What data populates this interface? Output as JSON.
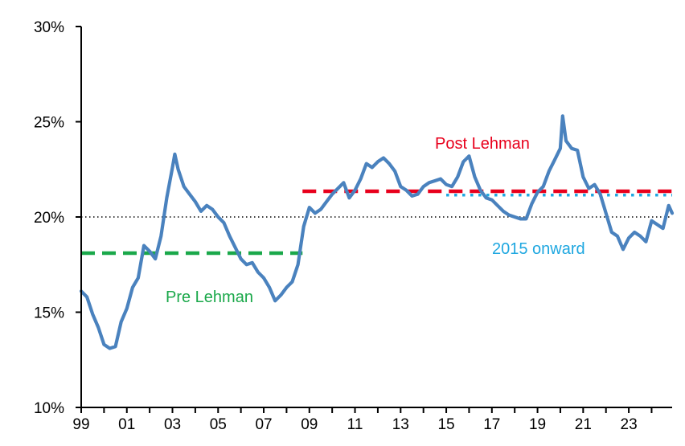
{
  "chart_data": {
    "type": "line",
    "title": "",
    "xlabel": "",
    "ylabel": "",
    "ylim": [
      10,
      30
    ],
    "xlim": [
      1999,
      2024.9
    ],
    "grid": false,
    "x_tick_values": [
      1999,
      2001,
      2003,
      2005,
      2007,
      2009,
      2011,
      2013,
      2015,
      2017,
      2019,
      2021,
      2023
    ],
    "x_tick_labels": [
      "99",
      "01",
      "03",
      "05",
      "07",
      "09",
      "11",
      "13",
      "15",
      "17",
      "19",
      "21",
      "23"
    ],
    "y_tick_values": [
      10,
      15,
      20,
      25,
      30
    ],
    "y_tick_labels": [
      "10%",
      "15%",
      "20%",
      "25%",
      "30%"
    ],
    "series": [
      {
        "color": "#4a82be",
        "x": [
          1999.0,
          1999.25,
          1999.5,
          1999.75,
          2000.0,
          2000.25,
          2000.5,
          2000.75,
          2001.0,
          2001.25,
          2001.5,
          2001.75,
          2002.0,
          2002.25,
          2002.5,
          2002.75,
          2003.0,
          2003.1,
          2003.25,
          2003.5,
          2003.75,
          2004.0,
          2004.25,
          2004.5,
          2004.75,
          2005.0,
          2005.25,
          2005.5,
          2005.75,
          2006.0,
          2006.25,
          2006.5,
          2006.75,
          2007.0,
          2007.25,
          2007.5,
          2007.75,
          2008.0,
          2008.25,
          2008.5,
          2008.75,
          2009.0,
          2009.25,
          2009.5,
          2009.75,
          2010.0,
          2010.25,
          2010.5,
          2010.75,
          2011.0,
          2011.25,
          2011.5,
          2011.75,
          2012.0,
          2012.25,
          2012.5,
          2012.75,
          2013.0,
          2013.25,
          2013.5,
          2013.75,
          2014.0,
          2014.25,
          2014.5,
          2014.75,
          2015.0,
          2015.25,
          2015.5,
          2015.75,
          2016.0,
          2016.25,
          2016.5,
          2016.75,
          2017.0,
          2017.25,
          2017.5,
          2017.75,
          2018.0,
          2018.25,
          2018.5,
          2018.75,
          2019.0,
          2019.25,
          2019.5,
          2019.75,
          2020.0,
          2020.1,
          2020.25,
          2020.5,
          2020.75,
          2021.0,
          2021.25,
          2021.5,
          2021.75,
          2022.0,
          2022.25,
          2022.5,
          2022.75,
          2023.0,
          2023.25,
          2023.5,
          2023.75,
          2024.0,
          2024.25,
          2024.5,
          2024.75,
          2024.9
        ],
        "values": [
          16.1,
          15.8,
          14.9,
          14.2,
          13.3,
          13.1,
          13.2,
          14.5,
          15.2,
          16.3,
          16.8,
          18.5,
          18.2,
          17.8,
          19.0,
          21.0,
          22.6,
          23.3,
          22.5,
          21.6,
          21.2,
          20.8,
          20.3,
          20.6,
          20.4,
          20.0,
          19.7,
          19.0,
          18.4,
          17.8,
          17.5,
          17.6,
          17.1,
          16.8,
          16.3,
          15.6,
          15.9,
          16.3,
          16.6,
          17.5,
          19.5,
          20.5,
          20.2,
          20.4,
          20.8,
          21.2,
          21.5,
          21.8,
          21.0,
          21.4,
          22.0,
          22.8,
          22.6,
          22.9,
          23.1,
          22.8,
          22.4,
          21.6,
          21.4,
          21.1,
          21.2,
          21.6,
          21.8,
          21.9,
          22.0,
          21.7,
          21.6,
          22.1,
          22.9,
          23.2,
          22.1,
          21.4,
          21.0,
          20.9,
          20.6,
          20.3,
          20.1,
          20.0,
          19.9,
          19.9,
          20.7,
          21.3,
          21.6,
          22.4,
          23.0,
          23.6,
          25.3,
          24.0,
          23.6,
          23.5,
          22.1,
          21.5,
          21.7,
          21.2,
          20.2,
          19.2,
          19.0,
          18.3,
          18.9,
          19.2,
          19.0,
          18.7,
          19.8,
          19.6,
          19.4,
          20.6,
          20.2
        ]
      }
    ],
    "reference_lines": [
      {
        "label": "",
        "value": 20.0,
        "x_start": 1999,
        "x_end": 2024.9,
        "color": "#000000",
        "style": "dotted-black"
      },
      {
        "label": "Pre Lehman",
        "value": 18.1,
        "x_start": 1999,
        "x_end": 2008.7,
        "color": "#1aa84a",
        "style": "dashed"
      },
      {
        "label": "Post Lehman",
        "value": 21.35,
        "x_start": 2008.7,
        "x_end": 2024.9,
        "color": "#e8001c",
        "style": "dashed"
      },
      {
        "label": "2015 onward",
        "value": 21.15,
        "x_start": 2015.0,
        "x_end": 2024.9,
        "color": "#1ea7e0",
        "style": "dotted"
      }
    ]
  }
}
